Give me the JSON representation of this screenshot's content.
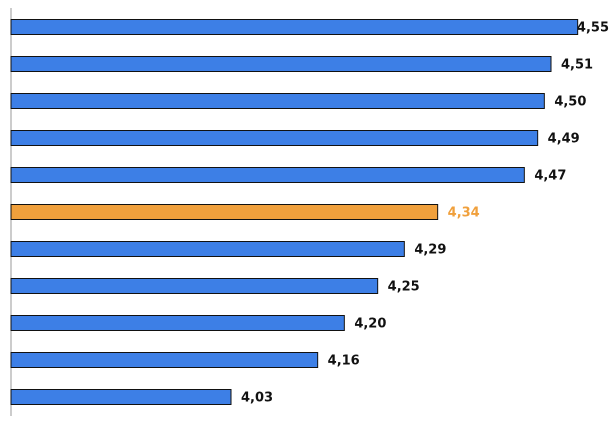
{
  "chart_data": {
    "type": "barh",
    "categories": [
      null,
      null,
      null,
      null,
      null,
      null,
      null,
      null,
      null,
      null,
      null
    ],
    "values": [
      4.55,
      4.51,
      4.5,
      4.49,
      4.47,
      4.34,
      4.29,
      4.25,
      4.2,
      4.16,
      4.03
    ],
    "value_labels": [
      "4,55",
      "4,51",
      "4,50",
      "4,49",
      "4,47",
      "4,34",
      "4,29",
      "4,25",
      "4,20",
      "4,16",
      "4,03"
    ],
    "colors": [
      "#3d7fe6",
      "#3d7fe6",
      "#3d7fe6",
      "#3d7fe6",
      "#3d7fe6",
      "#f0a03c",
      "#3d7fe6",
      "#3d7fe6",
      "#3d7fe6",
      "#3d7fe6",
      "#3d7fe6"
    ],
    "label_colors": [
      "#111111",
      "#111111",
      "#111111",
      "#111111",
      "#111111",
      "#f0a03c",
      "#111111",
      "#111111",
      "#111111",
      "#111111",
      "#111111"
    ],
    "xlim": [
      3.7,
      4.6
    ]
  }
}
